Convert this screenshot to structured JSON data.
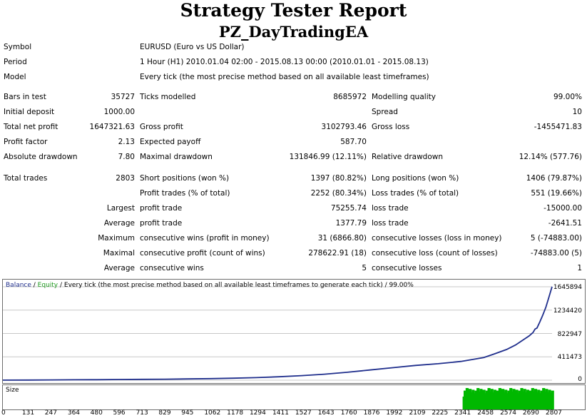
{
  "header": {
    "title": "Strategy Tester Report",
    "subtitle": "PZ_DayTradingEA"
  },
  "info": [
    {
      "label": "Symbol",
      "value": "EURUSD (Euro vs US Dollar)"
    },
    {
      "label": "Period",
      "value": "1 Hour (H1) 2010.01.04 02:00 - 2015.08.13 00:00 (2010.01.01 - 2015.08.13)"
    },
    {
      "label": "Model",
      "value": "Every tick (the most precise method based on all available least timeframes)"
    }
  ],
  "stats": {
    "bars_label": "Bars in test",
    "bars_value": "35727",
    "ticks_label": "Ticks modelled",
    "ticks_value": "8685972",
    "quality_label": "Modelling quality",
    "quality_value": "99.00%",
    "deposit_label": "Initial deposit",
    "deposit_value": "1000.00",
    "spread_label": "Spread",
    "spread_value": "10",
    "net_label": "Total net profit",
    "net_value": "1647321.63",
    "gross_profit_label": "Gross profit",
    "gross_profit_value": "3102793.46",
    "gross_loss_label": "Gross loss",
    "gross_loss_value": "-1455471.83",
    "pf_label": "Profit factor",
    "pf_value": "2.13",
    "payoff_label": "Expected payoff",
    "payoff_value": "587.70",
    "abs_dd_label": "Absolute drawdown",
    "abs_dd_value": "7.80",
    "max_dd_label": "Maximal drawdown",
    "max_dd_value": "131846.99 (12.11%)",
    "rel_dd_label": "Relative drawdown",
    "rel_dd_value": "12.14% (577.76)",
    "total_trades_label": "Total trades",
    "total_trades_value": "2803",
    "short_label": "Short positions (won %)",
    "short_value": "1397 (80.82%)",
    "long_label": "Long positions (won %)",
    "long_value": "1406 (79.87%)",
    "profit_trades_label": "Profit trades (% of total)",
    "profit_trades_value": "2252 (80.34%)",
    "loss_trades_label": "Loss trades (% of total)",
    "loss_trades_value": "551 (19.66%)",
    "largest_label": "Largest",
    "largest_profit_label": "profit trade",
    "largest_profit_value": "75255.74",
    "largest_loss_label": "loss trade",
    "largest_loss_value": "-15000.00",
    "average_label": "Average",
    "average_profit_label": "profit trade",
    "average_profit_value": "1377.79",
    "average_loss_label": "loss trade",
    "average_loss_value": "-2641.51",
    "maximum_label": "Maximum",
    "max_wins_label": "consecutive wins (profit in money)",
    "max_wins_value": "31 (6866.80)",
    "max_losses_label": "consecutive losses (loss in money)",
    "max_losses_value": "5 (-74883.00)",
    "maximal_label": "Maximal",
    "maximal_profit_label": "consecutive profit (count of wins)",
    "maximal_profit_value": "278622.91 (18)",
    "maximal_loss_label": "consecutive loss (count of losses)",
    "maximal_loss_value": "-74883.00 (5)",
    "avg_cons_label": "Average",
    "avg_wins_label": "consecutive wins",
    "avg_wins_value": "5",
    "avg_losses_label": "consecutive losses",
    "avg_losses_value": "1"
  },
  "chart_title": {
    "balance": "Balance",
    "sep1": " / ",
    "equity": "Equity",
    "rest": " / Every tick (the most precise method based on all available least timeframes to generate each tick) / 99.00%"
  },
  "volume_label": "Size",
  "colors": {
    "balance": "#1f2e8c",
    "equity": "#1f9a1f",
    "size_bars": "#00b800",
    "grid": "#c8c8c8"
  },
  "chart_data": {
    "type": "line",
    "x_ticks": [
      "0",
      "131",
      "247",
      "364",
      "480",
      "596",
      "713",
      "829",
      "945",
      "1062",
      "1178",
      "1294",
      "1411",
      "1527",
      "1643",
      "1760",
      "1876",
      "1992",
      "2109",
      "2225",
      "2341",
      "2458",
      "2574",
      "2690",
      "2807"
    ],
    "y_ticks": [
      "1645894",
      "1234420",
      "822947",
      "411473",
      "0"
    ],
    "ylim": [
      0,
      1645894
    ],
    "xlim": [
      0,
      2807
    ],
    "series": [
      {
        "name": "Balance",
        "x": [
          0,
          131,
          247,
          364,
          480,
          596,
          713,
          829,
          945,
          1062,
          1178,
          1294,
          1411,
          1527,
          1643,
          1760,
          1876,
          1992,
          2109,
          2225,
          2341,
          2458,
          2510,
          2574,
          2620,
          2690,
          2710,
          2720,
          2730,
          2745,
          2760,
          2775,
          2790,
          2807
        ],
        "y": [
          1000,
          3000,
          5000,
          7000,
          9000,
          12000,
          15000,
          18000,
          22000,
          28000,
          35000,
          45000,
          60000,
          80000,
          105000,
          140000,
          180000,
          220000,
          260000,
          290000,
          330000,
          400000,
          460000,
          540000,
          620000,
          780000,
          840000,
          900000,
          920000,
          1030000,
          1150000,
          1280000,
          1450000,
          1647321
        ]
      }
    ]
  }
}
